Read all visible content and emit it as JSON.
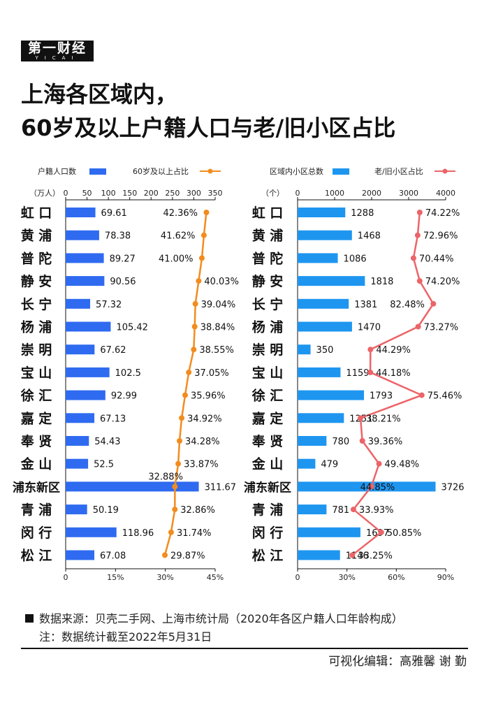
{
  "logo": {
    "main": "第一财经",
    "sub": "YICAI"
  },
  "title_line1": "上海各区域内，",
  "title_line2": "60岁及以上户籍人口与老/旧小区占比",
  "chart_data": [
    {
      "type": "bar+line",
      "unit_label": "（万人）",
      "legend": {
        "bar": "户籍人口数",
        "line": "60岁及以上占比"
      },
      "top_axis": {
        "range": [
          0,
          350
        ],
        "ticks": [
          "0",
          "50",
          "100",
          "150",
          "200",
          "250",
          "300",
          "350"
        ]
      },
      "bottom_axis": {
        "range": [
          0,
          45
        ],
        "ticks": [
          "0",
          "15%",
          "30%",
          "45%"
        ]
      },
      "categories": [
        "虹 口",
        "黄 浦",
        "普 陀",
        "静 安",
        "长 宁",
        "杨 浦",
        "崇 明",
        "宝 山",
        "徐 汇",
        "嘉 定",
        "奉 贤",
        "金 山",
        "浦东新区",
        "青 浦",
        "闵 行",
        "松 江"
      ],
      "bar_values": [
        69.61,
        78.38,
        89.27,
        90.56,
        57.32,
        105.42,
        67.62,
        102.5,
        92.99,
        67.13,
        54.43,
        52.5,
        311.67,
        50.19,
        118.96,
        67.08
      ],
      "bar_labels": [
        "69.61",
        "78.38",
        "89.27",
        "90.56",
        "57.32",
        "105.42",
        "67.62",
        "102.5",
        "92.99",
        "67.13",
        "54.43",
        "52.5",
        "311.67",
        "50.19",
        "118.96",
        "67.08"
      ],
      "line_values": [
        42.36,
        41.62,
        41.0,
        40.03,
        39.04,
        38.84,
        38.55,
        37.05,
        35.96,
        34.92,
        34.28,
        33.87,
        32.88,
        32.86,
        31.74,
        29.87
      ],
      "line_labels": [
        "42.36%",
        "41.62%",
        "41.00%",
        "40.03%",
        "39.04%",
        "38.84%",
        "38.55%",
        "37.05%",
        "35.96%",
        "34.92%",
        "34.28%",
        "33.87%",
        "32.88%",
        "32.86%",
        "31.74%",
        "29.87%"
      ],
      "colors": {
        "bar": "#2f6bf0",
        "line": "#f28c1e"
      }
    },
    {
      "type": "bar+line",
      "unit_label": "（个）",
      "legend": {
        "bar": "区域内小区总数",
        "line": "老/旧小区占比"
      },
      "top_axis": {
        "range": [
          0,
          4000
        ],
        "ticks": [
          "0",
          "1000",
          "2000",
          "3000",
          "4000"
        ]
      },
      "bottom_axis": {
        "range": [
          0,
          90
        ],
        "ticks": [
          "0",
          "30%",
          "60%",
          "90%"
        ]
      },
      "categories": [
        "虹 口",
        "黄 浦",
        "普 陀",
        "静 安",
        "长 宁",
        "杨 浦",
        "崇 明",
        "宝 山",
        "徐 汇",
        "嘉 定",
        "奉 贤",
        "金 山",
        "浦东新区",
        "青 浦",
        "闵 行",
        "松 江"
      ],
      "bar_values": [
        1288,
        1468,
        1086,
        1818,
        1381,
        1470,
        350,
        1159,
        1793,
        1251,
        780,
        479,
        3726,
        781,
        1697,
        1146
      ],
      "bar_labels": [
        "1288",
        "1468",
        "1086",
        "1818",
        "1381",
        "1470",
        "350",
        "1159",
        "1793",
        "1251",
        "780",
        "479",
        "3726",
        "781",
        "1697",
        "1146"
      ],
      "line_values": [
        74.22,
        72.96,
        70.44,
        74.2,
        82.48,
        73.27,
        44.29,
        44.18,
        75.46,
        38.21,
        39.36,
        49.48,
        44.85,
        33.93,
        50.85,
        33.25
      ],
      "line_labels": [
        "74.22%",
        "72.96%",
        "70.44%",
        "74.20%",
        "82.48%",
        "73.27%",
        "44.29%",
        "44.18%",
        "75.46%",
        "38.21%",
        "39.36%",
        "49.48%",
        "44.85%",
        "33.93%",
        "50.85%",
        "33.25%"
      ],
      "colors": {
        "bar": "#1e96f0",
        "line": "#ec6468"
      }
    }
  ],
  "footer": {
    "source": "数据来源：贝壳二手网、上海市统计局（2020年各区户籍人口年龄构成）",
    "note": "注：数据统计截至2022年5月31日",
    "editors": "可视化编辑：高雅馨   谢 勤"
  }
}
